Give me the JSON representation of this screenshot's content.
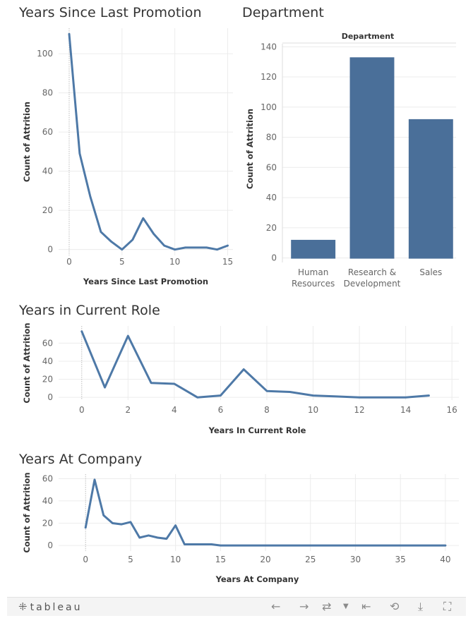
{
  "dashboard": {
    "titles": {
      "promotion": "Years Since Last Promotion",
      "department": "Department",
      "role": "Years in Current Role",
      "company": "Years At Company"
    }
  },
  "chart_data": [
    {
      "id": "promotion",
      "type": "line",
      "title": "Years Since Last Promotion",
      "xlabel": "Years Since Last Promotion",
      "ylabel": "Count of Attrition",
      "x": [
        0,
        1,
        2,
        3,
        4,
        5,
        6,
        7,
        8,
        9,
        10,
        11,
        12,
        13,
        14,
        15
      ],
      "series": [
        {
          "values": [
            110,
            49,
            27,
            9,
            4,
            0,
            5,
            16,
            8,
            2,
            0,
            1,
            1,
            1,
            0,
            2
          ]
        }
      ],
      "xticks": [
        0,
        5,
        10,
        15
      ],
      "yticks": [
        0,
        20,
        40,
        60,
        80,
        100
      ],
      "xlim": [
        -1,
        15.5
      ],
      "ylim": [
        -3,
        113
      ],
      "grid": true
    },
    {
      "id": "department",
      "type": "bar",
      "title": "Department",
      "header": "Department",
      "ylabel": "Count of Attrition",
      "categories": [
        {
          "lines": [
            "Human",
            "Resources"
          ]
        },
        {
          "lines": [
            "Research &",
            "Development"
          ]
        },
        {
          "lines": [
            "Sales"
          ]
        }
      ],
      "values": [
        12,
        133,
        92
      ],
      "yticks": [
        0,
        20,
        40,
        60,
        80,
        100,
        120,
        140
      ],
      "ylim": [
        -3,
        142
      ],
      "grid": true
    },
    {
      "id": "role",
      "type": "line",
      "title": "Years in Current Role",
      "xlabel": "Years In Current Role",
      "ylabel": "Count of Attrition",
      "x": [
        0,
        1,
        2,
        3,
        4,
        5,
        6,
        7,
        8,
        9,
        10,
        11,
        12,
        13,
        14,
        15
      ],
      "series": [
        {
          "values": [
            73,
            11,
            68,
            16,
            15,
            0,
            2,
            31,
            7,
            6,
            2,
            1,
            0,
            0,
            0,
            2
          ]
        }
      ],
      "xticks": [
        0,
        2,
        4,
        6,
        8,
        10,
        12,
        14,
        16
      ],
      "yticks": [
        0,
        20,
        40,
        60
      ],
      "xlim": [
        -1,
        16.3
      ],
      "ylim": [
        -3,
        79
      ],
      "grid": true
    },
    {
      "id": "company",
      "type": "line",
      "title": "Years At Company",
      "xlabel": "Years At Company",
      "ylabel": "Count of Attrition",
      "x": [
        0,
        1,
        2,
        3,
        4,
        5,
        6,
        7,
        8,
        9,
        10,
        11,
        12,
        13,
        14,
        15,
        20,
        25,
        30,
        35,
        40
      ],
      "series": [
        {
          "values": [
            16,
            59,
            27,
            20,
            19,
            21,
            7,
            9,
            7,
            6,
            18,
            1,
            1,
            1,
            1,
            0,
            0,
            0,
            0,
            0,
            0
          ]
        }
      ],
      "xticks": [
        0,
        5,
        10,
        15,
        20,
        25,
        30,
        35,
        40
      ],
      "yticks": [
        0,
        20,
        40,
        60
      ],
      "xlim": [
        -3,
        41.5
      ],
      "ylim": [
        -5,
        64
      ],
      "grid": true
    }
  ],
  "toolbar": {
    "brand": "tableau",
    "icons": [
      "tableau-logo-icon",
      "undo-icon",
      "redo-icon",
      "revert-icon",
      "revert-dropdown-icon",
      "reset-icon",
      "share-icon",
      "download-icon",
      "fullscreen-icon"
    ]
  }
}
